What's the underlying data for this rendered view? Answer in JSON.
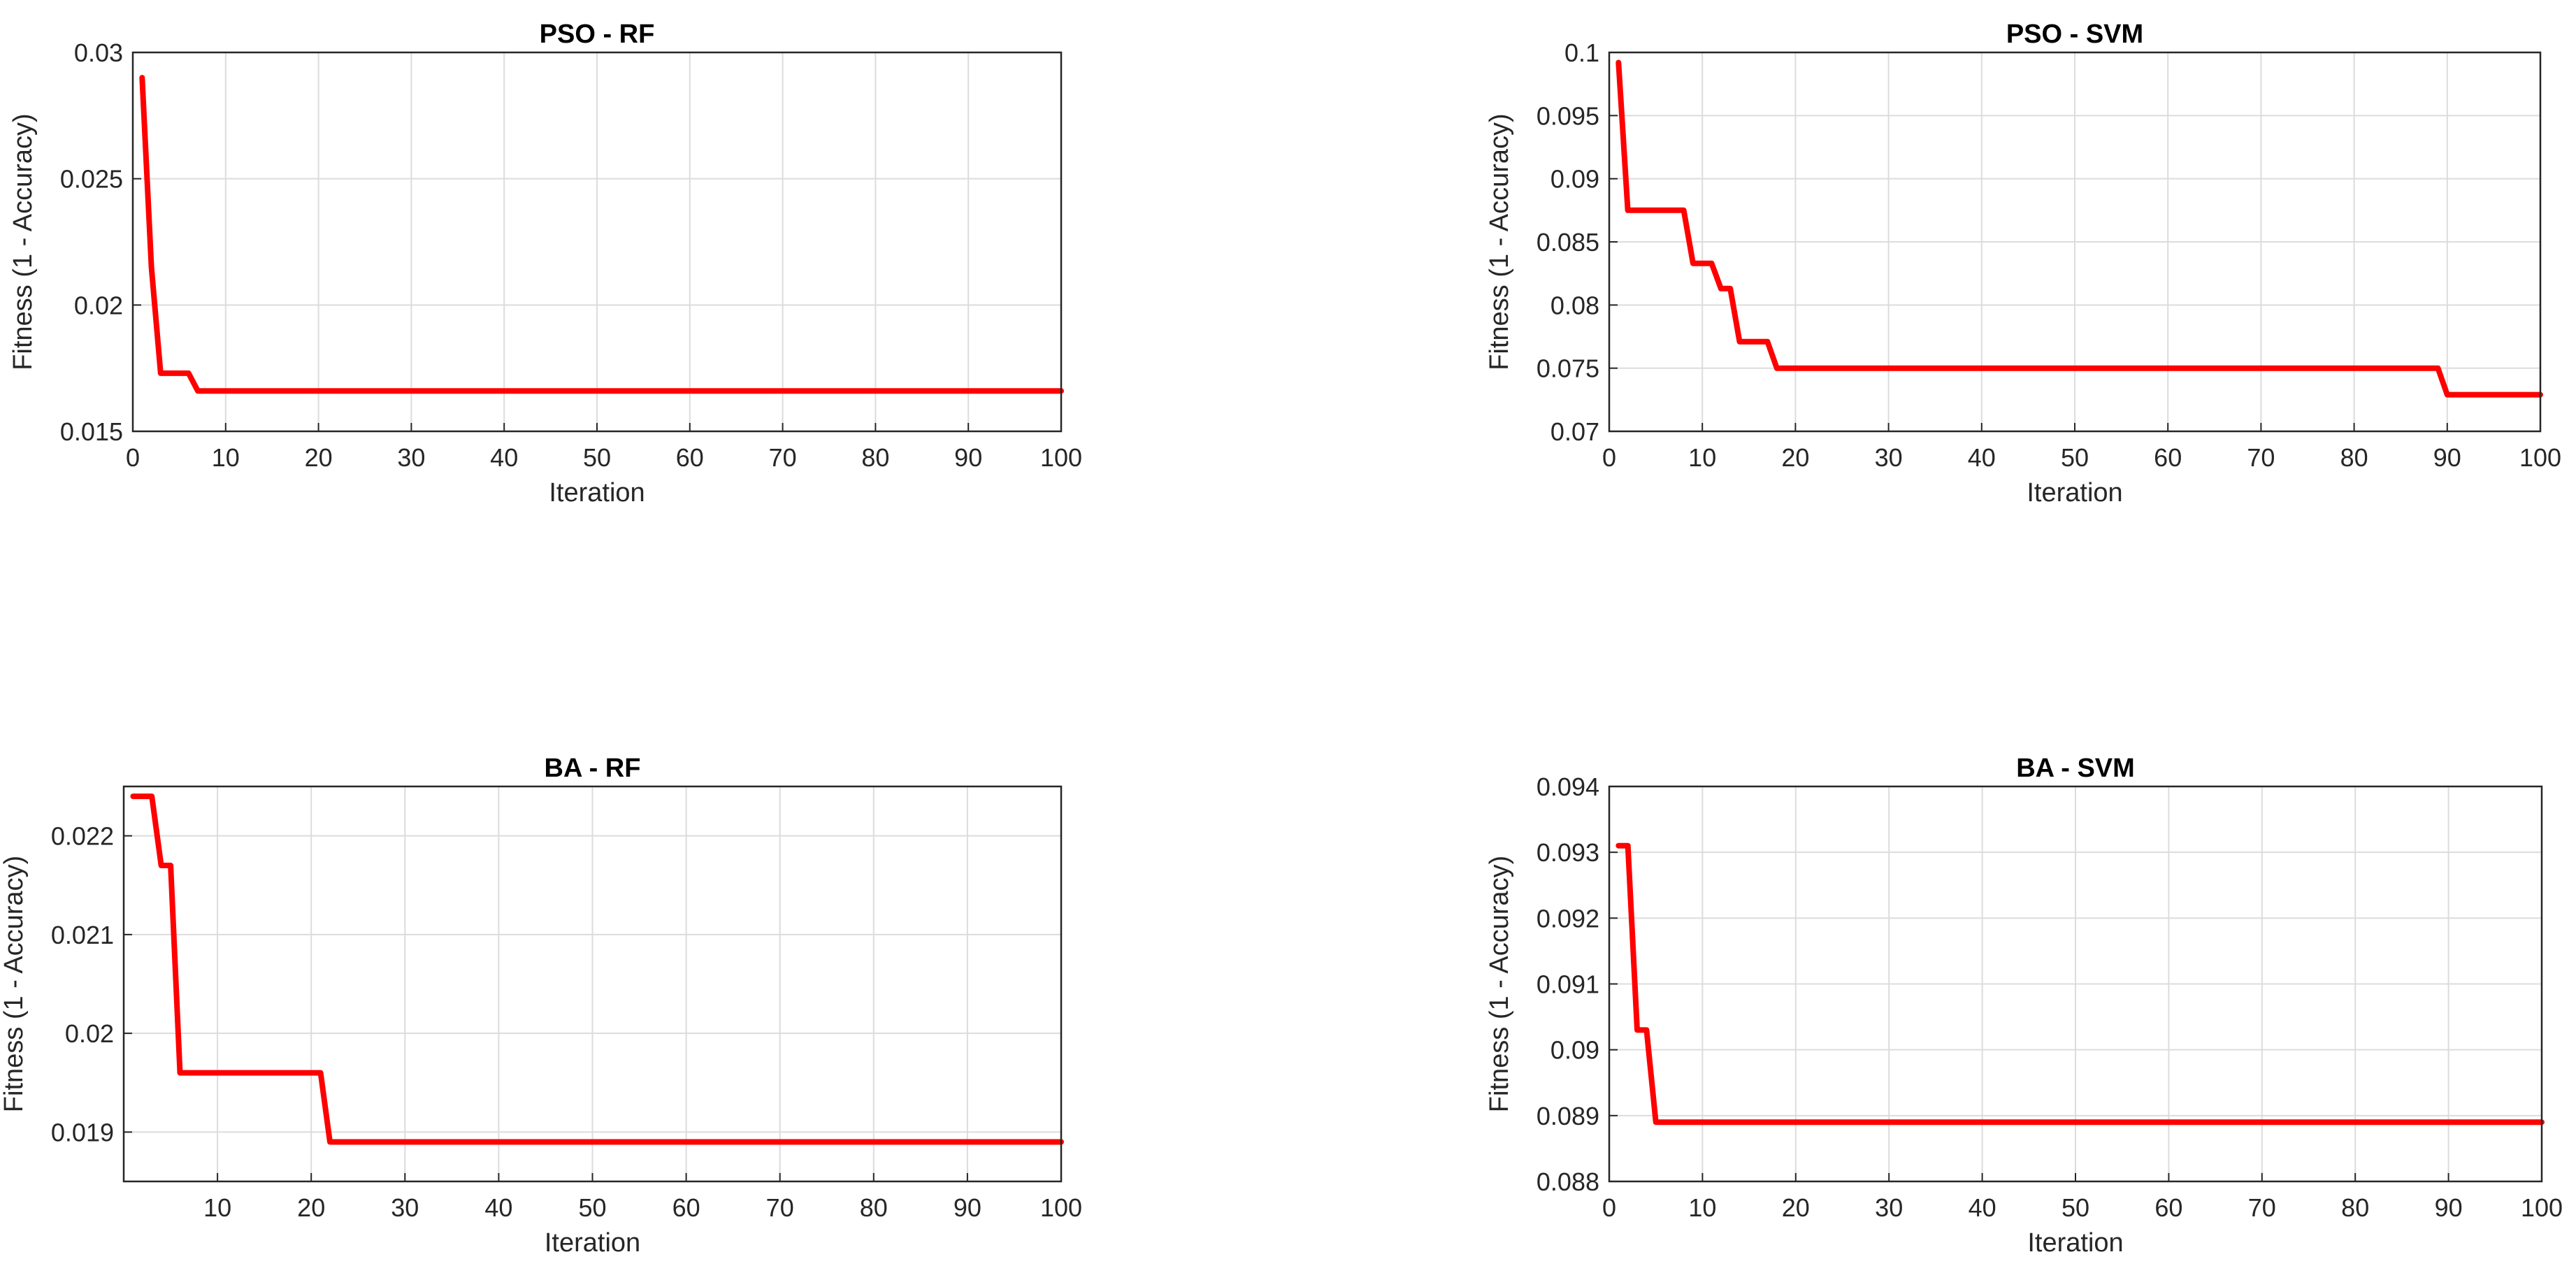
{
  "chart_data": [
    {
      "type": "line",
      "title": "PSO - RF",
      "xlabel": "Iteration",
      "ylabel": "Fitness (1 - Accuracy)",
      "xlim": [
        0,
        100
      ],
      "ylim": [
        0.015,
        0.03
      ],
      "xticks": [
        0,
        10,
        20,
        30,
        40,
        50,
        60,
        70,
        80,
        90,
        100
      ],
      "yticks": [
        0.015,
        0.02,
        0.025,
        0.03
      ],
      "xtick_labels": [
        "0",
        "10",
        "20",
        "30",
        "40",
        "50",
        "60",
        "70",
        "80",
        "90",
        "100"
      ],
      "ytick_labels": [
        "0.015",
        "0.02",
        "0.025",
        "0.03"
      ],
      "grid": true,
      "series": [
        {
          "color": "#ff0000",
          "x": [
            1,
            2,
            3,
            4,
            5,
            6,
            7,
            8,
            100
          ],
          "y": [
            0.029,
            0.0215,
            0.0173,
            0.0173,
            0.0173,
            0.0173,
            0.0166,
            0.0166,
            0.0166
          ]
        }
      ]
    },
    {
      "type": "line",
      "title": "PSO - SVM",
      "xlabel": "Iteration",
      "ylabel": "Fitness (1 - Accuracy)",
      "xlim": [
        0,
        100
      ],
      "ylim": [
        0.07,
        0.1
      ],
      "xticks": [
        0,
        10,
        20,
        30,
        40,
        50,
        60,
        70,
        80,
        90,
        100
      ],
      "yticks": [
        0.07,
        0.075,
        0.08,
        0.085,
        0.09,
        0.095,
        0.1
      ],
      "xtick_labels": [
        "0",
        "10",
        "20",
        "30",
        "40",
        "50",
        "60",
        "70",
        "80",
        "90",
        "100"
      ],
      "ytick_labels": [
        "0.07",
        "0.075",
        "0.08",
        "0.085",
        "0.09",
        "0.095",
        "0.1"
      ],
      "grid": true,
      "series": [
        {
          "color": "#ff0000",
          "x": [
            1,
            2,
            3,
            7,
            8,
            9,
            11,
            12,
            13,
            14,
            16,
            17,
            18,
            19,
            88,
            89,
            90,
            100
          ],
          "y": [
            0.0992,
            0.0875,
            0.0875,
            0.0875,
            0.0875,
            0.0833,
            0.0833,
            0.0813,
            0.0813,
            0.0771,
            0.0771,
            0.0771,
            0.075,
            0.075,
            0.075,
            0.075,
            0.0729,
            0.0729
          ]
        }
      ]
    },
    {
      "type": "line",
      "title": "BA - RF",
      "xlabel": "Iteration",
      "ylabel": "Fitness (1 - Accuracy)",
      "xlim": [
        0,
        100
      ],
      "ylim": [
        0.0185,
        0.0225
      ],
      "xticks": [
        10,
        20,
        30,
        40,
        50,
        60,
        70,
        80,
        90,
        100
      ],
      "yticks": [
        0.019,
        0.02,
        0.021,
        0.022
      ],
      "xtick_labels": [
        "10",
        "20",
        "30",
        "40",
        "50",
        "60",
        "70",
        "80",
        "90",
        "100"
      ],
      "ytick_labels": [
        "0.019",
        "0.02",
        "0.021",
        "0.022"
      ],
      "grid": true,
      "series": [
        {
          "color": "#ff0000",
          "x": [
            1,
            2,
            3,
            4,
            5,
            6,
            7,
            20,
            21,
            22,
            100
          ],
          "y": [
            0.0224,
            0.0224,
            0.0224,
            0.0217,
            0.0217,
            0.0196,
            0.0196,
            0.0196,
            0.0196,
            0.0189,
            0.0189
          ]
        }
      ]
    },
    {
      "type": "line",
      "title": "BA - SVM",
      "xlabel": "Iteration",
      "ylabel": "Fitness (1 - Accuracy)",
      "xlim": [
        0,
        100
      ],
      "ylim": [
        0.088,
        0.094
      ],
      "xticks": [
        0,
        10,
        20,
        30,
        40,
        50,
        60,
        70,
        80,
        90,
        100
      ],
      "yticks": [
        0.088,
        0.089,
        0.09,
        0.091,
        0.092,
        0.093,
        0.094
      ],
      "xtick_labels": [
        "0",
        "10",
        "20",
        "30",
        "40",
        "50",
        "60",
        "70",
        "80",
        "90",
        "100"
      ],
      "ytick_labels": [
        "0.088",
        "0.089",
        "0.09",
        "0.091",
        "0.092",
        "0.093",
        "0.094"
      ],
      "grid": true,
      "series": [
        {
          "color": "#ff0000",
          "x": [
            1,
            2,
            3,
            4,
            5,
            100
          ],
          "y": [
            0.0931,
            0.0931,
            0.0903,
            0.0903,
            0.0889,
            0.0889
          ]
        }
      ]
    }
  ]
}
